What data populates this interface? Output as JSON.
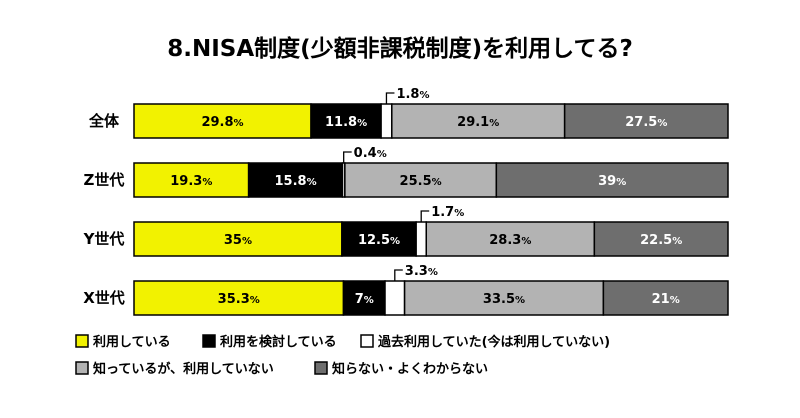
{
  "chart_data": {
    "type": "bar",
    "stacked": true,
    "orientation": "horizontal",
    "title": "8.NISA制度(少額非課税制度)を利用してる?",
    "categories": [
      "全体",
      "Z世代",
      "Y世代",
      "X世代"
    ],
    "unit": "%",
    "series": [
      {
        "name": "利用している",
        "color": "#f2f200",
        "text_color": "#000000",
        "values": [
          29.8,
          19.3,
          35,
          35.3
        ],
        "labels": [
          "29.8",
          "19.3",
          "35",
          "35.3"
        ]
      },
      {
        "name": "利用を検討している",
        "color": "#000000",
        "text_color": "#ffffff",
        "values": [
          11.8,
          15.8,
          12.5,
          7
        ],
        "labels": [
          "11.8",
          "15.8",
          "12.5",
          "7"
        ]
      },
      {
        "name": "過去利用していた(今は利用していない)",
        "color": "#ffffff",
        "text_color": "#000000",
        "values": [
          1.8,
          0.4,
          1.7,
          3.3
        ],
        "labels": [
          "1.8",
          "0.4",
          "1.7",
          "3.3"
        ],
        "callout": true
      },
      {
        "name": "知っているが、利用していない",
        "color": "#b3b3b3",
        "text_color": "#000000",
        "values": [
          29.1,
          25.5,
          28.3,
          33.5
        ],
        "labels": [
          "29.1",
          "25.5",
          "28.3",
          "33.5"
        ]
      },
      {
        "name": "知らない・よくわからない",
        "color": "#6e6e6e",
        "text_color": "#ffffff",
        "values": [
          27.5,
          39,
          22.5,
          21
        ],
        "labels": [
          "27.5",
          "39",
          "22.5",
          "21"
        ]
      }
    ],
    "legend_position": "bottom-left",
    "grid": false
  }
}
